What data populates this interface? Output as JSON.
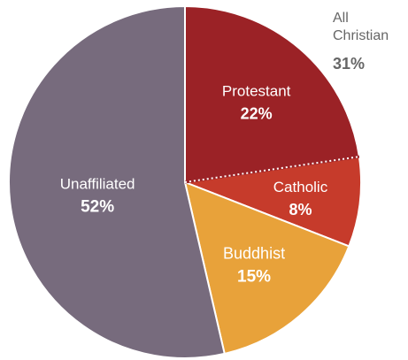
{
  "chart_data": {
    "type": "pie",
    "title": "",
    "slices": [
      {
        "label": "Protestant",
        "value": 22,
        "value_label": "22%",
        "color": "#9b2226"
      },
      {
        "label": "Catholic",
        "value": 8,
        "value_label": "8%",
        "color": "#c63b2b"
      },
      {
        "label": "Buddhist",
        "value": 15,
        "value_label": "15%",
        "color": "#e8a23a"
      },
      {
        "label": "Unaffiliated",
        "value": 52,
        "value_label": "52%",
        "color": "#776b7d"
      }
    ],
    "annotation": {
      "line1": "All",
      "line2": "Christian",
      "value_label": "31%",
      "color": "#666666"
    },
    "divider_style": "dotted line between Protestant and Catholic"
  }
}
